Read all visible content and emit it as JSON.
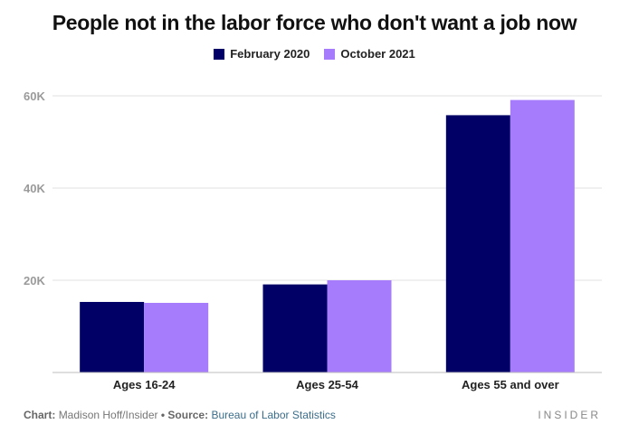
{
  "chart_data": {
    "type": "bar",
    "title": "People not in the labor force who don't want a job now",
    "categories": [
      "Ages 16-24",
      "Ages 25-54",
      "Ages 55 and over"
    ],
    "series": [
      {
        "name": "February 2020",
        "color": "#000066",
        "values": [
          15300,
          19100,
          55800
        ]
      },
      {
        "name": "October 2021",
        "color": "#a67cfc",
        "values": [
          15100,
          20000,
          59100
        ]
      }
    ],
    "ylim": [
      0,
      60000
    ],
    "yticks": [
      {
        "value": 20000,
        "label": "20K"
      },
      {
        "value": 40000,
        "label": "40K"
      },
      {
        "value": 60000,
        "label": "60K"
      }
    ],
    "grid": true,
    "legend_position": "top-center"
  },
  "footer": {
    "chart_label": "Chart:",
    "chart_author": "Madison Hoff/Insider",
    "separator": "•",
    "source_label": "Source:",
    "source_name": "Bureau of Labor Statistics"
  },
  "brand": "INSIDER"
}
